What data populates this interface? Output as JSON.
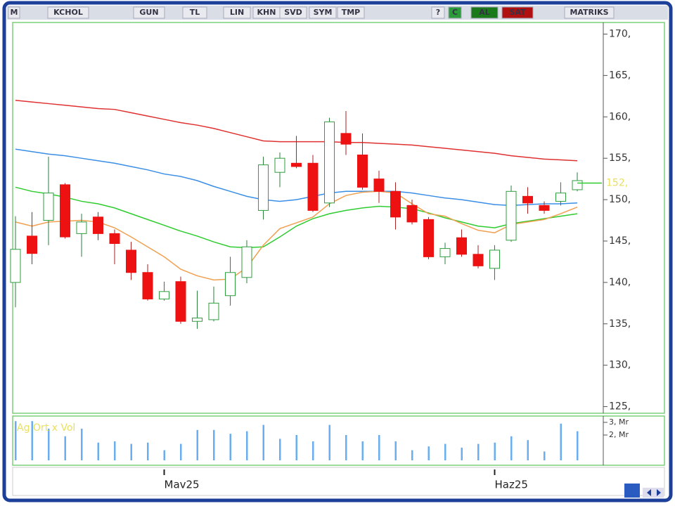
{
  "toolbar": {
    "items": [
      "M",
      "KCHOL",
      "GUN",
      "TL",
      "LIN",
      "KHN",
      "SVD",
      "SYM",
      "TMP",
      "?",
      "C",
      "AL",
      "SAT",
      "MATRIKS"
    ]
  },
  "chart_data": [
    {
      "type": "candlestick",
      "categories": [
        null,
        null,
        null,
        null,
        null,
        null,
        null,
        null,
        null,
        "Mav25",
        null,
        null,
        null,
        null,
        null,
        null,
        null,
        null,
        null,
        null,
        null,
        null,
        null,
        null,
        null,
        null,
        null,
        null,
        null,
        "Haz25",
        null,
        null,
        null,
        null,
        null
      ],
      "open": [
        140,
        145.6,
        147.5,
        151.8,
        145.9,
        147.9,
        145.9,
        143.9,
        141.2,
        138,
        140.1,
        135.3,
        135.5,
        138.4,
        140.6,
        148.7,
        153.3,
        154.4,
        154.4,
        149.6,
        158,
        155.4,
        152.5,
        151,
        149.3,
        147.6,
        143.1,
        145.4,
        143.4,
        141.7,
        145.1,
        150.4,
        149.3,
        149.8,
        151.2
      ],
      "high": [
        148,
        148.5,
        155.2,
        152,
        148.3,
        148.5,
        146.4,
        144.9,
        142.2,
        140.1,
        140.7,
        139,
        139.5,
        143.1,
        145.1,
        155.2,
        155.7,
        157.7,
        155.4,
        159.9,
        160.7,
        158,
        153.5,
        152.1,
        150,
        147.9,
        144.8,
        146.4,
        144.5,
        144.5,
        151.7,
        151.5,
        149.8,
        152.1,
        153.3
      ],
      "low": [
        137,
        142.2,
        144.5,
        145.3,
        143.1,
        145.1,
        142.2,
        140.3,
        137.8,
        137.8,
        135,
        134.4,
        135.3,
        137.2,
        139.9,
        147.6,
        151.5,
        153.8,
        148.5,
        149.1,
        155.4,
        151.2,
        149.6,
        146.4,
        147,
        142.8,
        142.2,
        143.1,
        141.7,
        140.3,
        144.9,
        148.3,
        148.3,
        149.3,
        151
      ],
      "close": [
        144,
        143.5,
        150.8,
        145.5,
        147.3,
        145.9,
        144.7,
        141.2,
        138,
        138.9,
        135.3,
        135.7,
        137.5,
        141.2,
        144.3,
        154.2,
        155,
        154,
        148.7,
        159.4,
        156.7,
        151.5,
        151,
        147.9,
        147.3,
        143.1,
        144.1,
        143.4,
        142,
        143.9,
        151,
        149.6,
        148.7,
        150.8,
        152.3
      ],
      "up_color": "#2e9e3e",
      "down_color": "#ee1111",
      "lines": [
        {
          "color": "#e03030",
          "values": [
            162.0,
            161.8,
            161.6,
            161.4,
            161.2,
            161.0,
            160.9,
            160.5,
            160.1,
            159.7,
            159.3,
            159.0,
            158.6,
            158.1,
            157.6,
            157.1,
            157.0,
            157.0,
            157.0,
            157.0,
            156.9,
            156.9,
            156.8,
            156.7,
            156.6,
            156.4,
            156.2,
            156.0,
            155.8,
            155.6,
            155.3,
            155.1,
            154.9,
            154.8,
            154.7
          ]
        },
        {
          "color": "#3a8ee6",
          "values": [
            156.1,
            155.8,
            155.5,
            155.3,
            155.0,
            154.7,
            154.4,
            154.0,
            153.6,
            153.1,
            152.8,
            152.3,
            151.6,
            151.0,
            150.4,
            150.0,
            149.8,
            150.0,
            150.4,
            150.8,
            151.0,
            151.0,
            151.0,
            151.0,
            150.8,
            150.5,
            150.2,
            150.0,
            149.7,
            149.4,
            149.3,
            149.4,
            149.5,
            149.5,
            149.6
          ]
        },
        {
          "color": "#2ecc2e",
          "values": [
            151.5,
            151.0,
            150.7,
            150.3,
            149.8,
            149.5,
            149.0,
            148.3,
            147.6,
            146.9,
            146.2,
            145.6,
            144.9,
            144.3,
            144.2,
            144.3,
            145.5,
            146.8,
            147.7,
            148.3,
            148.7,
            149.0,
            149.2,
            149.1,
            148.9,
            148.4,
            147.8,
            147.3,
            146.8,
            146.6,
            147.1,
            147.4,
            147.7,
            148.0,
            148.3
          ]
        },
        {
          "color": "#f0a050",
          "values": [
            147.3,
            146.8,
            147.3,
            147.4,
            147.5,
            147.3,
            146.6,
            145.5,
            144.3,
            143.1,
            141.6,
            140.8,
            140.3,
            140.4,
            141.8,
            144.5,
            146.5,
            147.2,
            147.9,
            149.5,
            150.5,
            150.9,
            151.0,
            150.8,
            149.5,
            148.3,
            148.0,
            147.1,
            146.3,
            146.0,
            147.0,
            147.3,
            147.6,
            148.3,
            149.1
          ]
        }
      ],
      "ylim": [
        124.2,
        171.4
      ],
      "yticks": [
        {
          "value": 125,
          "label": "125,"
        },
        {
          "value": 130,
          "label": "130,"
        },
        {
          "value": 135,
          "label": "135,"
        },
        {
          "value": 140,
          "label": "140,"
        },
        {
          "value": 145,
          "label": "145,"
        },
        {
          "value": 150,
          "label": "150,"
        },
        {
          "value": 155,
          "label": "155,"
        },
        {
          "value": 160,
          "label": "160,"
        },
        {
          "value": 165,
          "label": "165,"
        },
        {
          "value": 170,
          "label": "170,"
        }
      ],
      "last_price": {
        "value": 152,
        "label": "152,"
      }
    },
    {
      "type": "bar",
      "title": "Ag Ort x Vol",
      "values": [
        3.1,
        3.1,
        2.5,
        1.9,
        2.5,
        1.4,
        1.5,
        1.3,
        1.4,
        0.8,
        1.3,
        2.4,
        2.4,
        2.1,
        2.3,
        2.8,
        1.7,
        2.0,
        1.5,
        2.8,
        2.0,
        1.5,
        2.0,
        1.5,
        0.8,
        1.1,
        1.3,
        1.0,
        1.3,
        1.4,
        1.9,
        1.6,
        0.7,
        2.9,
        2.3
      ],
      "color": "#6aaef0",
      "ylim": [
        0,
        3.5
      ],
      "yticks": [
        {
          "value": 2,
          "label": "2, Mr"
        },
        {
          "value": 3,
          "label": "3, Mr"
        }
      ]
    }
  ]
}
